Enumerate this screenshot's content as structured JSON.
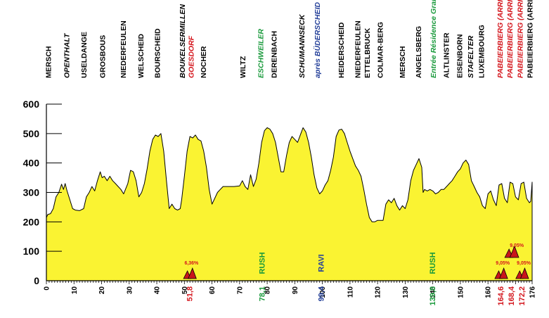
{
  "chart_data": {
    "type": "area",
    "xlim": [
      0,
      176
    ],
    "ylim": [
      0,
      600
    ],
    "y_ticks": [
      0,
      100,
      200,
      300,
      400,
      500,
      600
    ],
    "x_ticks": [
      0,
      10,
      20,
      30,
      40,
      50,
      60,
      70,
      80,
      90,
      100,
      110,
      120,
      130,
      140,
      150,
      160,
      176
    ],
    "x_markers": [
      {
        "x": 51.8,
        "label": "51,8",
        "color": "#d4161d"
      },
      {
        "x": 78.1,
        "label": "78,1",
        "color": "#1a9a3c"
      },
      {
        "x": 99.4,
        "label": "99,4",
        "color": "#233f99"
      },
      {
        "x": 139.8,
        "label": "139,8",
        "color": "#1a9a3c"
      },
      {
        "x": 164.6,
        "label": "164,6",
        "color": "#d4161d"
      },
      {
        "x": 168.4,
        "label": "168,4",
        "color": "#d4161d"
      },
      {
        "x": 172.2,
        "label": "172,2",
        "color": "#d4161d"
      }
    ],
    "profile": [
      [
        0,
        215
      ],
      [
        0.5,
        225
      ],
      [
        1.5,
        228
      ],
      [
        2.5,
        245
      ],
      [
        3.5,
        285
      ],
      [
        4.5,
        300
      ],
      [
        5.5,
        328
      ],
      [
        6.2,
        310
      ],
      [
        6.8,
        330
      ],
      [
        7.5,
        305
      ],
      [
        8.5,
        275
      ],
      [
        9.5,
        245
      ],
      [
        10.5,
        240
      ],
      [
        12,
        238
      ],
      [
        13.5,
        245
      ],
      [
        14.5,
        285
      ],
      [
        15.5,
        300
      ],
      [
        16.5,
        320
      ],
      [
        17.5,
        305
      ],
      [
        18.5,
        340
      ],
      [
        19.5,
        370
      ],
      [
        20.2,
        350
      ],
      [
        21,
        355
      ],
      [
        22,
        340
      ],
      [
        23,
        355
      ],
      [
        24,
        340
      ],
      [
        25,
        330
      ],
      [
        26,
        320
      ],
      [
        27,
        310
      ],
      [
        28,
        295
      ],
      [
        29.5,
        330
      ],
      [
        30.5,
        375
      ],
      [
        31.5,
        370
      ],
      [
        32.5,
        340
      ],
      [
        33.5,
        285
      ],
      [
        34.5,
        300
      ],
      [
        35.5,
        330
      ],
      [
        36.5,
        380
      ],
      [
        37.5,
        440
      ],
      [
        38.5,
        480
      ],
      [
        39.5,
        495
      ],
      [
        40.5,
        490
      ],
      [
        41.5,
        500
      ],
      [
        42.5,
        440
      ],
      [
        43.5,
        340
      ],
      [
        44.5,
        245
      ],
      [
        45.5,
        260
      ],
      [
        46.5,
        245
      ],
      [
        47.5,
        240
      ],
      [
        48.5,
        245
      ],
      [
        49,
        275
      ],
      [
        50,
        355
      ],
      [
        51,
        440
      ],
      [
        52,
        490
      ],
      [
        53,
        485
      ],
      [
        54,
        495
      ],
      [
        55,
        480
      ],
      [
        56,
        475
      ],
      [
        57,
        440
      ],
      [
        58,
        385
      ],
      [
        59,
        310
      ],
      [
        60,
        260
      ],
      [
        61,
        280
      ],
      [
        62,
        300
      ],
      [
        63,
        310
      ],
      [
        64,
        320
      ],
      [
        66,
        320
      ],
      [
        68,
        320
      ],
      [
        70,
        322
      ],
      [
        71,
        340
      ],
      [
        72,
        320
      ],
      [
        73,
        310
      ],
      [
        74,
        360
      ],
      [
        75,
        320
      ],
      [
        76,
        345
      ],
      [
        77,
        400
      ],
      [
        78,
        470
      ],
      [
        79,
        510
      ],
      [
        80,
        520
      ],
      [
        81,
        515
      ],
      [
        82,
        500
      ],
      [
        83,
        470
      ],
      [
        84,
        420
      ],
      [
        85,
        370
      ],
      [
        86,
        370
      ],
      [
        87,
        425
      ],
      [
        88,
        470
      ],
      [
        89,
        490
      ],
      [
        90,
        480
      ],
      [
        91,
        470
      ],
      [
        92,
        495
      ],
      [
        93,
        520
      ],
      [
        94,
        505
      ],
      [
        95,
        470
      ],
      [
        96,
        420
      ],
      [
        97,
        360
      ],
      [
        98,
        315
      ],
      [
        99,
        295
      ],
      [
        100,
        305
      ],
      [
        101,
        325
      ],
      [
        102,
        340
      ],
      [
        103,
        375
      ],
      [
        104,
        420
      ],
      [
        105,
        490
      ],
      [
        106,
        512
      ],
      [
        107,
        515
      ],
      [
        108,
        500
      ],
      [
        109,
        470
      ],
      [
        110,
        440
      ],
      [
        111,
        415
      ],
      [
        112,
        390
      ],
      [
        113,
        375
      ],
      [
        114,
        355
      ],
      [
        115,
        310
      ],
      [
        116,
        260
      ],
      [
        117,
        215
      ],
      [
        118,
        200
      ],
      [
        119,
        200
      ],
      [
        120,
        205
      ],
      [
        121,
        205
      ],
      [
        122,
        205
      ],
      [
        123,
        260
      ],
      [
        124,
        275
      ],
      [
        125,
        265
      ],
      [
        126,
        280
      ],
      [
        127,
        255
      ],
      [
        128,
        240
      ],
      [
        129,
        255
      ],
      [
        130,
        245
      ],
      [
        131,
        275
      ],
      [
        132,
        340
      ],
      [
        133,
        375
      ],
      [
        134,
        395
      ],
      [
        135,
        415
      ],
      [
        136,
        385
      ],
      [
        136.5,
        300
      ],
      [
        137,
        310
      ],
      [
        138,
        305
      ],
      [
        139,
        310
      ],
      [
        140,
        305
      ],
      [
        141,
        295
      ],
      [
        142,
        300
      ],
      [
        143,
        310
      ],
      [
        144,
        310
      ],
      [
        145,
        320
      ],
      [
        146,
        330
      ],
      [
        147,
        340
      ],
      [
        148,
        355
      ],
      [
        149,
        370
      ],
      [
        150,
        380
      ],
      [
        151,
        400
      ],
      [
        152,
        410
      ],
      [
        153,
        395
      ],
      [
        154,
        340
      ],
      [
        155,
        320
      ],
      [
        156,
        300
      ],
      [
        157,
        285
      ],
      [
        158,
        255
      ],
      [
        159,
        245
      ],
      [
        160,
        295
      ],
      [
        161,
        305
      ],
      [
        162,
        275
      ],
      [
        163,
        255
      ],
      [
        164,
        325
      ],
      [
        165,
        330
      ],
      [
        166,
        280
      ],
      [
        167,
        265
      ],
      [
        168,
        335
      ],
      [
        169,
        330
      ],
      [
        170,
        285
      ],
      [
        171,
        275
      ],
      [
        172,
        330
      ],
      [
        173,
        335
      ],
      [
        174,
        280
      ],
      [
        175,
        265
      ],
      [
        175.5,
        270
      ],
      [
        176,
        335
      ]
    ],
    "top_labels": [
      {
        "x": 0.7,
        "text": "MERSCH",
        "color": "#000000",
        "italic": false
      },
      {
        "x": 7.3,
        "text": "OPENTHALT",
        "color": "#000000",
        "italic": true
      },
      {
        "x": 13.5,
        "text": "USELDANGE",
        "color": "#000000",
        "italic": false
      },
      {
        "x": 20.3,
        "text": "GROSBOUS",
        "color": "#000000",
        "italic": false
      },
      {
        "x": 27.7,
        "text": "NIEDERFEULEN",
        "color": "#000000",
        "italic": false
      },
      {
        "x": 34.1,
        "text": "WELSCHEID",
        "color": "#000000",
        "italic": false
      },
      {
        "x": 40.1,
        "text": "BOURSCHEID",
        "color": "#000000",
        "italic": false
      },
      {
        "x": 49.2,
        "text": "BOUKELSERMILLEN",
        "color": "#000000",
        "italic": true
      },
      {
        "x": 52.4,
        "text": "GOESDORF",
        "color": "#d4161d",
        "italic": true
      },
      {
        "x": 56.8,
        "text": "NOCHER",
        "color": "#000000",
        "italic": false
      },
      {
        "x": 71.1,
        "text": "WILTZ",
        "color": "#000000",
        "italic": false
      },
      {
        "x": 77.6,
        "text": "ESCHWEILER",
        "color": "#1a9a3c",
        "italic": true
      },
      {
        "x": 82.4,
        "text": "DERENBACH",
        "color": "#000000",
        "italic": false
      },
      {
        "x": 92.4,
        "text": "SCHUMANNSECK",
        "color": "#000000",
        "italic": true
      },
      {
        "x": 98.1,
        "text": "après BÜDERSCHEID",
        "color": "#233f99",
        "italic": true
      },
      {
        "x": 106.7,
        "text": "HEIDERSCHEID",
        "color": "#000000",
        "italic": false
      },
      {
        "x": 112.7,
        "text": "NIEDERFEULEN",
        "color": "#000000",
        "italic": false
      },
      {
        "x": 116.2,
        "text": "ETTELBRUCK",
        "color": "#000000",
        "italic": false
      },
      {
        "x": 120.9,
        "text": "COLMAR-BERG",
        "color": "#000000",
        "italic": false
      },
      {
        "x": 128.9,
        "text": "MERSCH",
        "color": "#000000",
        "italic": false
      },
      {
        "x": 134.8,
        "text": "ANGELSBERG",
        "color": "#000000",
        "italic": false
      },
      {
        "x": 140.1,
        "text": "Entrée Résidence Grand-Duc Jean",
        "color": "#1a9a3c",
        "italic": true
      },
      {
        "x": 144.8,
        "text": "ALTLINSTER",
        "color": "#000000",
        "italic": false
      },
      {
        "x": 149.6,
        "text": "EISENBORN",
        "color": "#000000",
        "italic": false
      },
      {
        "x": 153.6,
        "text": "STAFELTER",
        "color": "#000000",
        "italic": true
      },
      {
        "x": 157.5,
        "text": "LUXEMBOURG",
        "color": "#000000",
        "italic": false
      },
      {
        "x": 164.3,
        "text": "PABEIERBIERG (ARRIVÉE)",
        "color": "#d4161d",
        "italic": true
      },
      {
        "x": 167.9,
        "text": "PABEIERBIERG (ARRIVÉE)",
        "color": "#d4161d",
        "italic": true
      },
      {
        "x": 171.6,
        "text": "PABEIERBIERG (ARRIVÉE)",
        "color": "#d4161d",
        "italic": true
      },
      {
        "x": 175.1,
        "text": "PABEIERBIERG (ARRIVÉE)",
        "color": "#000000",
        "italic": false
      }
    ],
    "climbs": [
      {
        "x": 51.8,
        "grade": "6,36%",
        "size": "small"
      },
      {
        "x": 164.6,
        "grade": "9,05%",
        "size": "small"
      },
      {
        "x": 168.4,
        "grade": "9,05%",
        "size": "large"
      },
      {
        "x": 172.2,
        "grade": "9,05%",
        "size": "small"
      }
    ],
    "sprints": [
      {
        "x": 78.1,
        "label": "RUSH",
        "color": "#1a9a3c"
      },
      {
        "x": 99.4,
        "label": "RAVI",
        "color": "#233f99"
      },
      {
        "x": 139.8,
        "label": "RUSH",
        "color": "#1a9a3c"
      }
    ],
    "colors": {
      "fill": "#faf332",
      "climb": "#c8151b",
      "grid": "#000000"
    }
  }
}
